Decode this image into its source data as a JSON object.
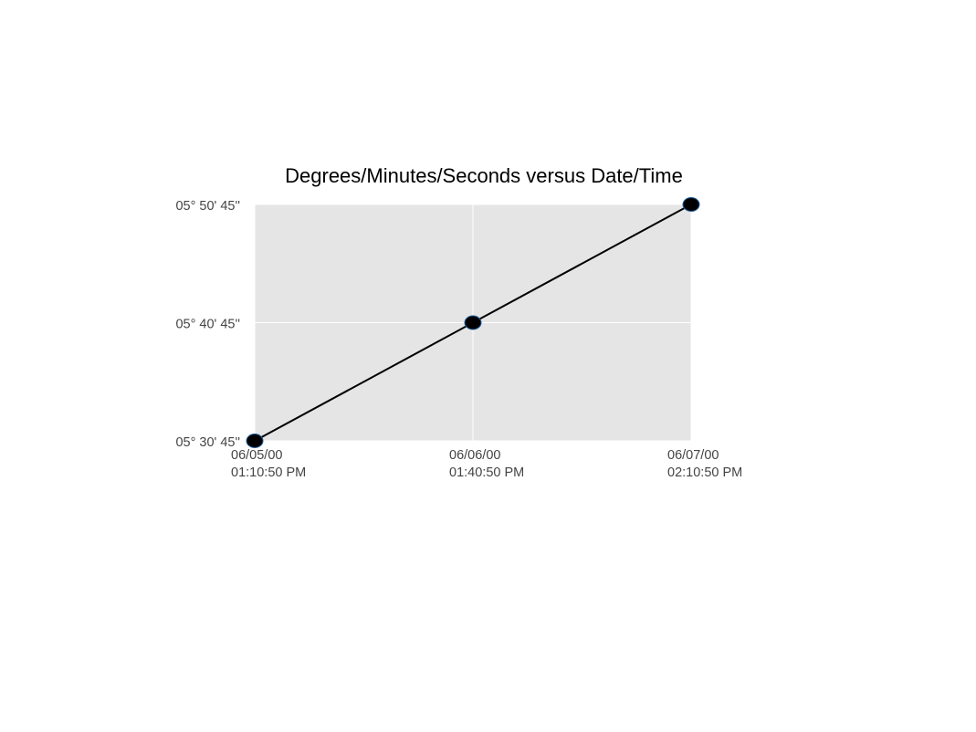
{
  "chart_data": {
    "type": "line",
    "title": "Degrees/Minutes/Seconds versus Date/Time",
    "xlabel": "",
    "ylabel": "",
    "x": [
      "2000-06-05T13:10:50",
      "2000-06-06T13:40:50",
      "2000-06-07T14:10:50"
    ],
    "x_ticks": [
      {
        "value": "2000-06-05T13:10:50",
        "date": "06/05/00",
        "time": "01:10:50 PM"
      },
      {
        "value": "2000-06-06T13:40:50",
        "date": "06/06/00",
        "time": "01:40:50 PM"
      },
      {
        "value": "2000-06-07T14:10:50",
        "date": "06/07/00",
        "time": "02:10:50 PM"
      }
    ],
    "y_ticks": [
      {
        "value": "05° 30' 45''",
        "label": "05° 30' 45''"
      },
      {
        "value": "05° 40' 45''",
        "label": "05° 40' 45''"
      },
      {
        "value": "05° 50' 45''",
        "label": "05° 50' 45''"
      }
    ],
    "ylim": [
      "05° 30' 45''",
      "05° 50' 45''"
    ],
    "series": [
      {
        "values": [
          "05° 30' 45''",
          "05° 40' 45''",
          "05° 50' 45''"
        ],
        "line_color": "#000000",
        "marker": "circle",
        "marker_color": "#000000",
        "marker_edge_color": "#1f5f9f"
      }
    ],
    "grid": true,
    "plot_background": "#e5e5e5",
    "grid_color": "#ffffff",
    "legend": "none"
  }
}
